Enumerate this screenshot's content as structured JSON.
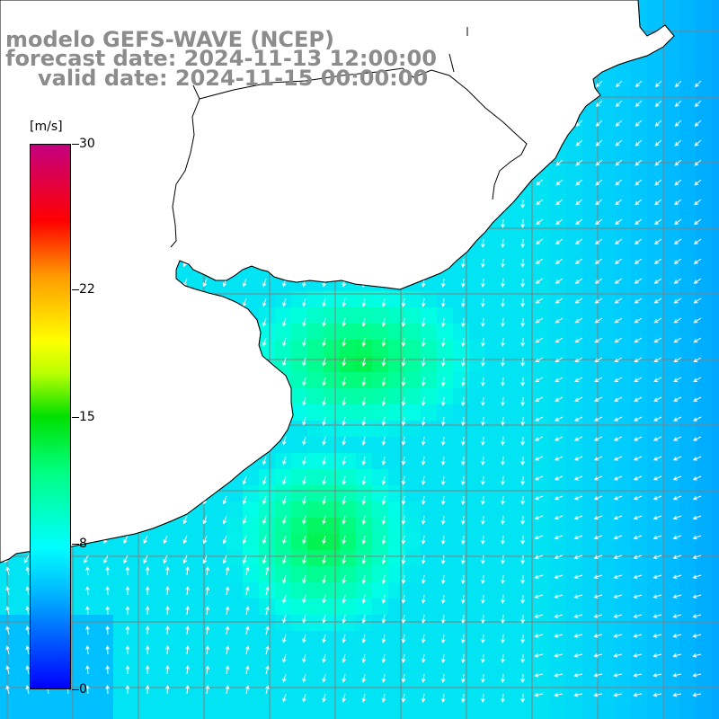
{
  "title": {
    "line1": "modelo GEFS-WAVE (NCEP)",
    "line2": "forecast date: 2024-11-13 12:00:00",
    "line3": "valid date: 2024-11-15 00:00:00"
  },
  "colorbar": {
    "unit": "[m/s]",
    "min": 0,
    "max": 30,
    "tick_labels": [
      "30",
      "22",
      "15",
      "8",
      "0"
    ],
    "tick_values": [
      30,
      22,
      15,
      8,
      0
    ],
    "colors": [
      "#0000ff",
      "#00bbff",
      "#00ffff",
      "#00e000",
      "#ffff00",
      "#ff0000",
      "#c40080"
    ]
  },
  "map": {
    "land_color": "#ffffff",
    "coast_color": "#000000",
    "grid_color": "#808080",
    "arrow_color": "#ffffff"
  }
}
